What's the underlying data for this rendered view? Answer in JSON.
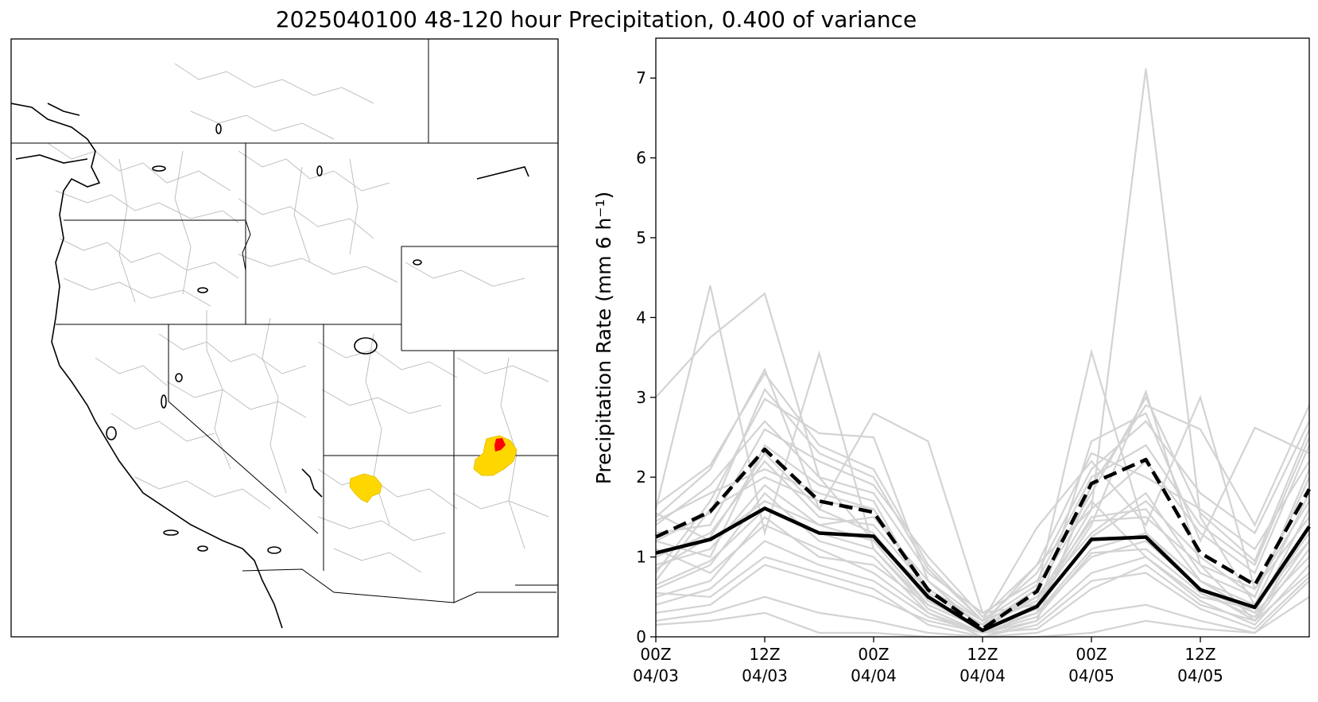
{
  "title": "2025040100 48-120 hour Precipitation, 0.400 of variance",
  "map_panel": {
    "highlight_colors": {
      "basin": "#ffd700",
      "focus": "#ff0000"
    },
    "boundary_color": "#000000",
    "watershed_color": "#bfbfbf"
  },
  "chart_data": {
    "type": "line",
    "ylabel": "Precipitation Rate (mm 6 h⁻¹)",
    "ylim": [
      0,
      7.5
    ],
    "yticks": [
      0,
      1,
      2,
      3,
      4,
      5,
      6,
      7
    ],
    "x": [
      0,
      6,
      12,
      18,
      24,
      30,
      36,
      42,
      48,
      54,
      60,
      66,
      72
    ],
    "xlim": [
      0,
      72
    ],
    "xticks": [
      0,
      12,
      24,
      36,
      48,
      60
    ],
    "xtick_labels": [
      [
        "00Z",
        "04/03"
      ],
      [
        "12Z",
        "04/03"
      ],
      [
        "00Z",
        "04/04"
      ],
      [
        "12Z",
        "04/04"
      ],
      [
        "00Z",
        "04/05"
      ],
      [
        "12Z",
        "04/05"
      ]
    ],
    "series": [
      {
        "style": "solid-black",
        "values": [
          1.05,
          1.22,
          1.61,
          1.3,
          1.26,
          0.5,
          0.08,
          0.38,
          1.22,
          1.25,
          0.59,
          0.37,
          1.38
        ]
      },
      {
        "style": "dashed-black",
        "values": [
          1.25,
          1.57,
          2.35,
          1.7,
          1.56,
          0.59,
          0.1,
          0.57,
          1.92,
          2.22,
          1.05,
          0.65,
          1.85
        ]
      }
    ],
    "members": [
      [
        3.0,
        3.75,
        4.3,
        2.0,
        1.2,
        0.6,
        0.15,
        0.9,
        1.6,
        7.12,
        1.5,
        0.4,
        1.2
      ],
      [
        1.6,
        4.4,
        1.3,
        3.55,
        1.1,
        0.4,
        0.1,
        0.6,
        3.57,
        1.3,
        0.7,
        0.3,
        1.0
      ],
      [
        1.5,
        2.1,
        3.35,
        1.6,
        2.8,
        2.45,
        0.3,
        0.4,
        1.4,
        3.07,
        0.9,
        0.2,
        0.8
      ],
      [
        0.8,
        1.7,
        2.98,
        2.55,
        2.5,
        0.7,
        0.2,
        1.37,
        2.2,
        1.4,
        3.0,
        0.6,
        1.5
      ],
      [
        1.2,
        1.0,
        2.4,
        1.9,
        1.7,
        0.5,
        0.05,
        0.3,
        2.45,
        2.8,
        1.2,
        2.62,
        2.3
      ],
      [
        0.6,
        0.9,
        1.8,
        1.2,
        1.0,
        0.3,
        0.0,
        0.2,
        1.9,
        2.9,
        2.6,
        1.4,
        2.9
      ],
      [
        1.0,
        1.3,
        2.2,
        1.5,
        1.4,
        0.6,
        0.2,
        0.5,
        1.3,
        1.8,
        0.8,
        0.5,
        2.0
      ],
      [
        0.5,
        0.7,
        1.5,
        1.0,
        0.9,
        0.4,
        0.1,
        0.3,
        1.0,
        1.2,
        0.6,
        0.3,
        1.6
      ],
      [
        1.4,
        1.9,
        2.7,
        2.0,
        1.8,
        0.8,
        0.3,
        0.7,
        2.0,
        2.4,
        1.4,
        0.9,
        2.5
      ],
      [
        0.9,
        1.1,
        1.9,
        1.4,
        1.2,
        0.4,
        0.1,
        0.4,
        1.5,
        1.6,
        0.7,
        0.4,
        1.8
      ],
      [
        1.65,
        2.15,
        3.3,
        2.4,
        2.1,
        0.9,
        0.2,
        0.8,
        2.1,
        2.7,
        1.8,
        1.3,
        2.7
      ],
      [
        0.3,
        0.4,
        0.9,
        0.7,
        0.5,
        0.2,
        0.05,
        0.1,
        0.6,
        0.9,
        0.4,
        0.2,
        1.1
      ],
      [
        0.15,
        0.2,
        0.3,
        0.05,
        0.05,
        0.0,
        0.0,
        0.0,
        0.05,
        0.2,
        0.1,
        0.05,
        0.7
      ],
      [
        0.7,
        1.6,
        2.0,
        1.7,
        1.6,
        0.6,
        0.15,
        0.6,
        1.7,
        1.0,
        0.5,
        0.35,
        1.3
      ],
      [
        1.1,
        0.8,
        1.4,
        1.1,
        0.8,
        0.3,
        0.05,
        0.3,
        1.1,
        1.3,
        0.6,
        0.2,
        1.4
      ],
      [
        0.4,
        0.6,
        1.2,
        0.9,
        0.7,
        0.25,
        0.05,
        0.2,
        0.8,
        1.0,
        0.45,
        0.15,
        0.9
      ],
      [
        1.3,
        1.4,
        2.6,
        2.2,
        1.9,
        1.0,
        0.25,
        0.9,
        2.3,
        2.0,
        1.6,
        1.1,
        2.2
      ],
      [
        0.2,
        0.3,
        0.5,
        0.3,
        0.2,
        0.05,
        0.0,
        0.05,
        0.3,
        0.4,
        0.2,
        0.05,
        0.5
      ],
      [
        1.55,
        1.2,
        1.7,
        1.4,
        1.5,
        0.7,
        0.1,
        0.5,
        1.45,
        1.5,
        0.9,
        0.6,
        1.7
      ],
      [
        0.85,
        1.25,
        2.3,
        1.6,
        1.3,
        0.45,
        0.1,
        0.35,
        1.25,
        1.7,
        1.0,
        0.5,
        2.1
      ],
      [
        0.65,
        0.95,
        1.6,
        1.3,
        1.1,
        0.35,
        0.05,
        0.25,
        1.05,
        1.1,
        0.55,
        0.25,
        1.2
      ],
      [
        1.45,
        1.8,
        2.1,
        1.8,
        1.6,
        0.55,
        0.15,
        0.45,
        1.6,
        2.2,
        1.3,
        0.8,
        2.4
      ],
      [
        0.55,
        0.5,
        1.0,
        0.8,
        0.6,
        0.15,
        0.0,
        0.15,
        0.7,
        0.8,
        0.35,
        0.1,
        0.75
      ],
      [
        1.2,
        1.55,
        3.1,
        2.3,
        2.0,
        0.85,
        0.2,
        0.65,
        1.8,
        3.0,
        1.55,
        0.95,
        2.6
      ]
    ]
  }
}
